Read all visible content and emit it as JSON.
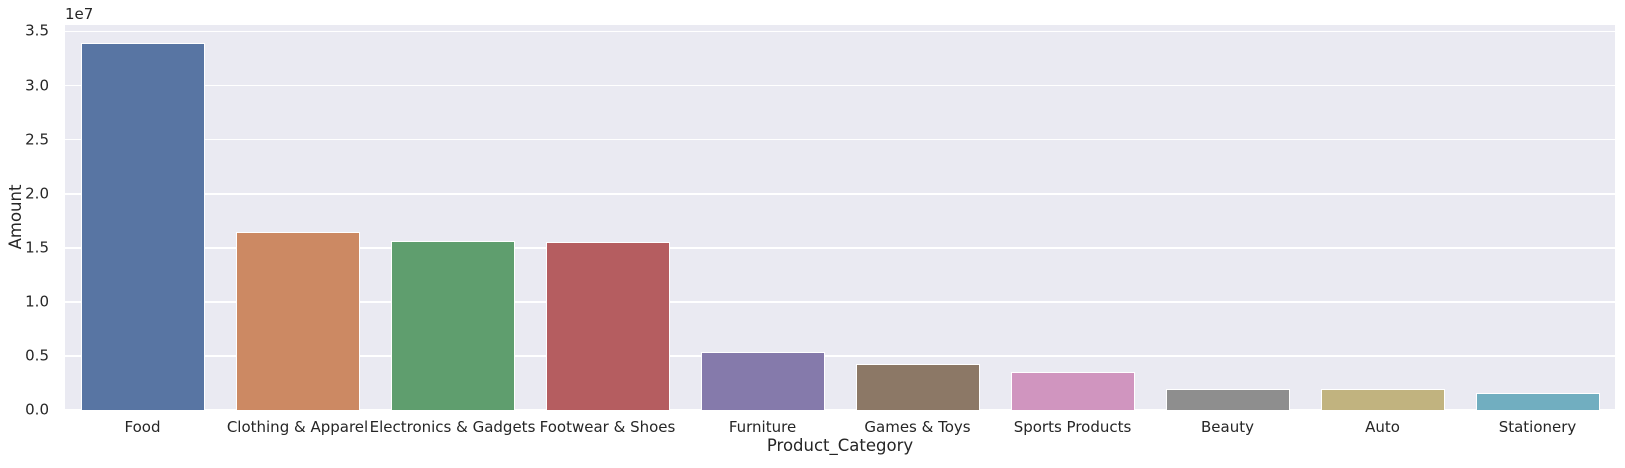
{
  "figure": {
    "background_color": "#ffffff",
    "plot_background_color": "#eaeaf2",
    "grid_color": "#ffffff",
    "text_color": "#262626"
  },
  "chart_data": {
    "type": "bar",
    "title": "",
    "xlabel": "Product_Category",
    "ylabel": "Amount",
    "y_offset_label": "1e7",
    "categories": [
      "Food",
      "Clothing & Apparel",
      "Electronics & Gadgets",
      "Footwear & Shoes",
      "Furniture",
      "Games & Toys",
      "Sports Products",
      "Beauty",
      "Auto",
      "Stationery"
    ],
    "values": [
      33900000,
      16500000,
      15600000,
      15500000,
      5400000,
      4300000,
      3550000,
      1950000,
      1900000,
      1550000
    ],
    "bar_colors": [
      "#5875a3",
      "#cc8963",
      "#5f9e6e",
      "#b55d60",
      "#857aab",
      "#8c7866",
      "#d095bf",
      "#8e8e8e",
      "#c1b37f",
      "#71aec0"
    ],
    "ylim": [
      0,
      35600000
    ],
    "yticks": [
      0,
      5000000,
      10000000,
      15000000,
      20000000,
      25000000,
      30000000,
      35000000
    ],
    "ytick_labels": [
      "0.0",
      "0.5",
      "1.0",
      "1.5",
      "2.0",
      "2.5",
      "3.0",
      "3.5"
    ],
    "bar_width_fraction": 0.8,
    "grid": true,
    "legend_position": null
  }
}
